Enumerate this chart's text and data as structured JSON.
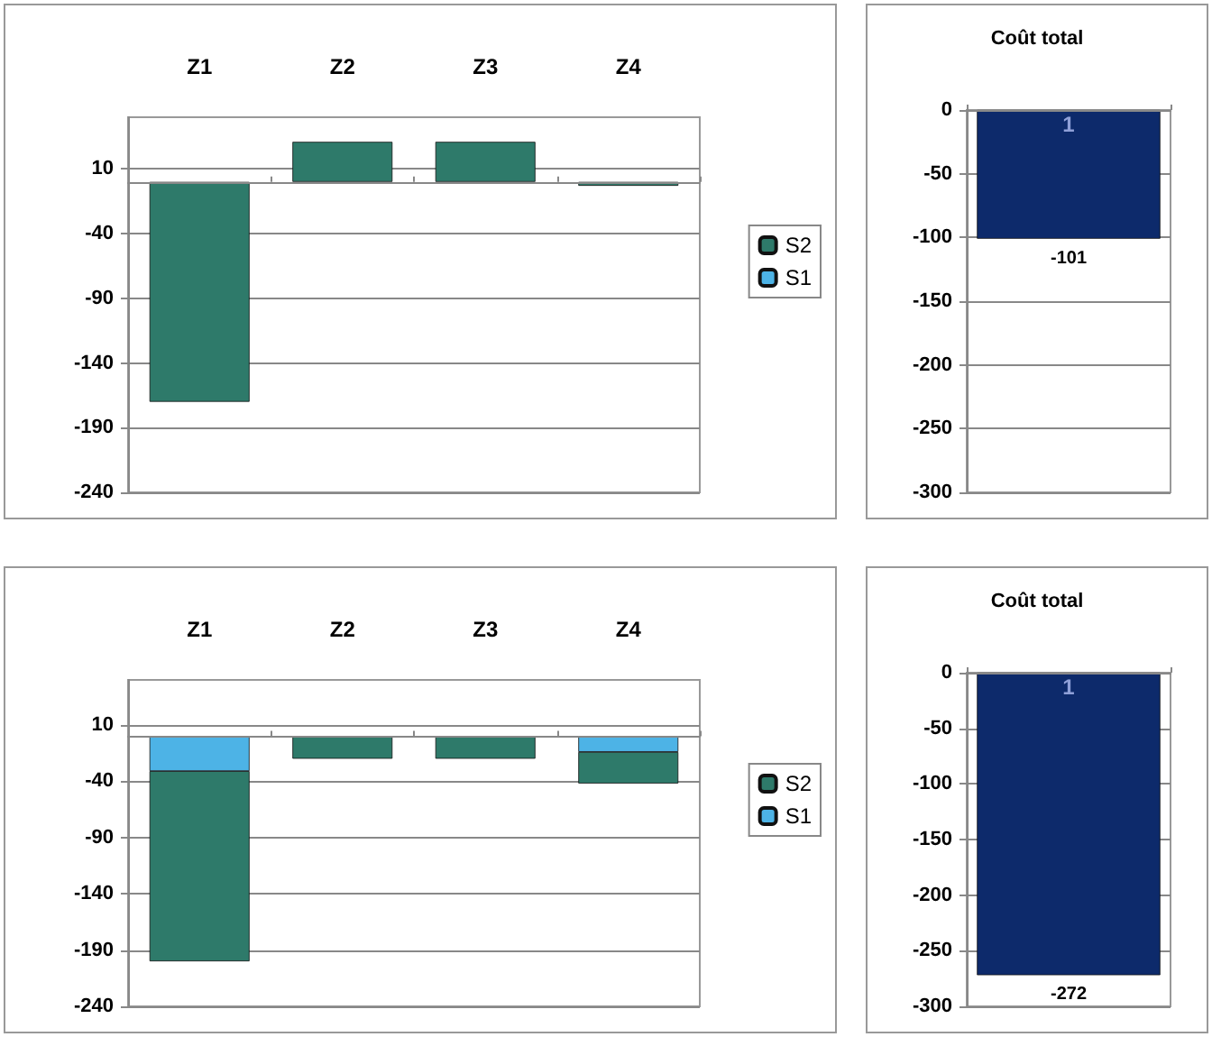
{
  "chart_data": [
    {
      "type": "bar",
      "categories": [
        "Z1",
        "Z2",
        "Z3",
        "Z4"
      ],
      "stacked": true,
      "ylim": [
        -240,
        50
      ],
      "yticks": [
        -240,
        -190,
        -140,
        -90,
        -40,
        10
      ],
      "grid": "y",
      "legend": "right",
      "series": [
        {
          "name": "S1",
          "color": "#4db3e6",
          "values": [
            null,
            null,
            null,
            null
          ]
        },
        {
          "name": "S2",
          "color": "#2e7a6a",
          "values": [
            -170,
            31,
            31,
            -3
          ]
        }
      ]
    },
    {
      "type": "bar",
      "title": "Coût total",
      "categories": [
        "1"
      ],
      "ylim": [
        -300,
        0
      ],
      "yticks": [
        -300,
        -250,
        -200,
        -150,
        -100,
        -50,
        0
      ],
      "grid": "y",
      "data_labels": true,
      "series": [
        {
          "color": "#0d2a6b",
          "values": [
            -101
          ]
        }
      ]
    },
    {
      "type": "bar",
      "categories": [
        "Z1",
        "Z2",
        "Z3",
        "Z4"
      ],
      "stacked": true,
      "ylim": [
        -240,
        50
      ],
      "yticks": [
        -240,
        -190,
        -140,
        -90,
        -40,
        10
      ],
      "grid": "y",
      "legend": "right",
      "series": [
        {
          "name": "S1",
          "color": "#4db3e6",
          "values": [
            -31,
            null,
            null,
            -14
          ]
        },
        {
          "name": "S2",
          "color": "#2e7a6a",
          "values": [
            -169,
            -20,
            -20,
            -28
          ]
        }
      ]
    },
    {
      "type": "bar",
      "title": "Coût total",
      "categories": [
        "1"
      ],
      "ylim": [
        -300,
        0
      ],
      "yticks": [
        -300,
        -250,
        -200,
        -150,
        -100,
        -50,
        0
      ],
      "grid": "y",
      "data_labels": true,
      "series": [
        {
          "color": "#0d2a6b",
          "values": [
            -272
          ]
        }
      ]
    }
  ]
}
